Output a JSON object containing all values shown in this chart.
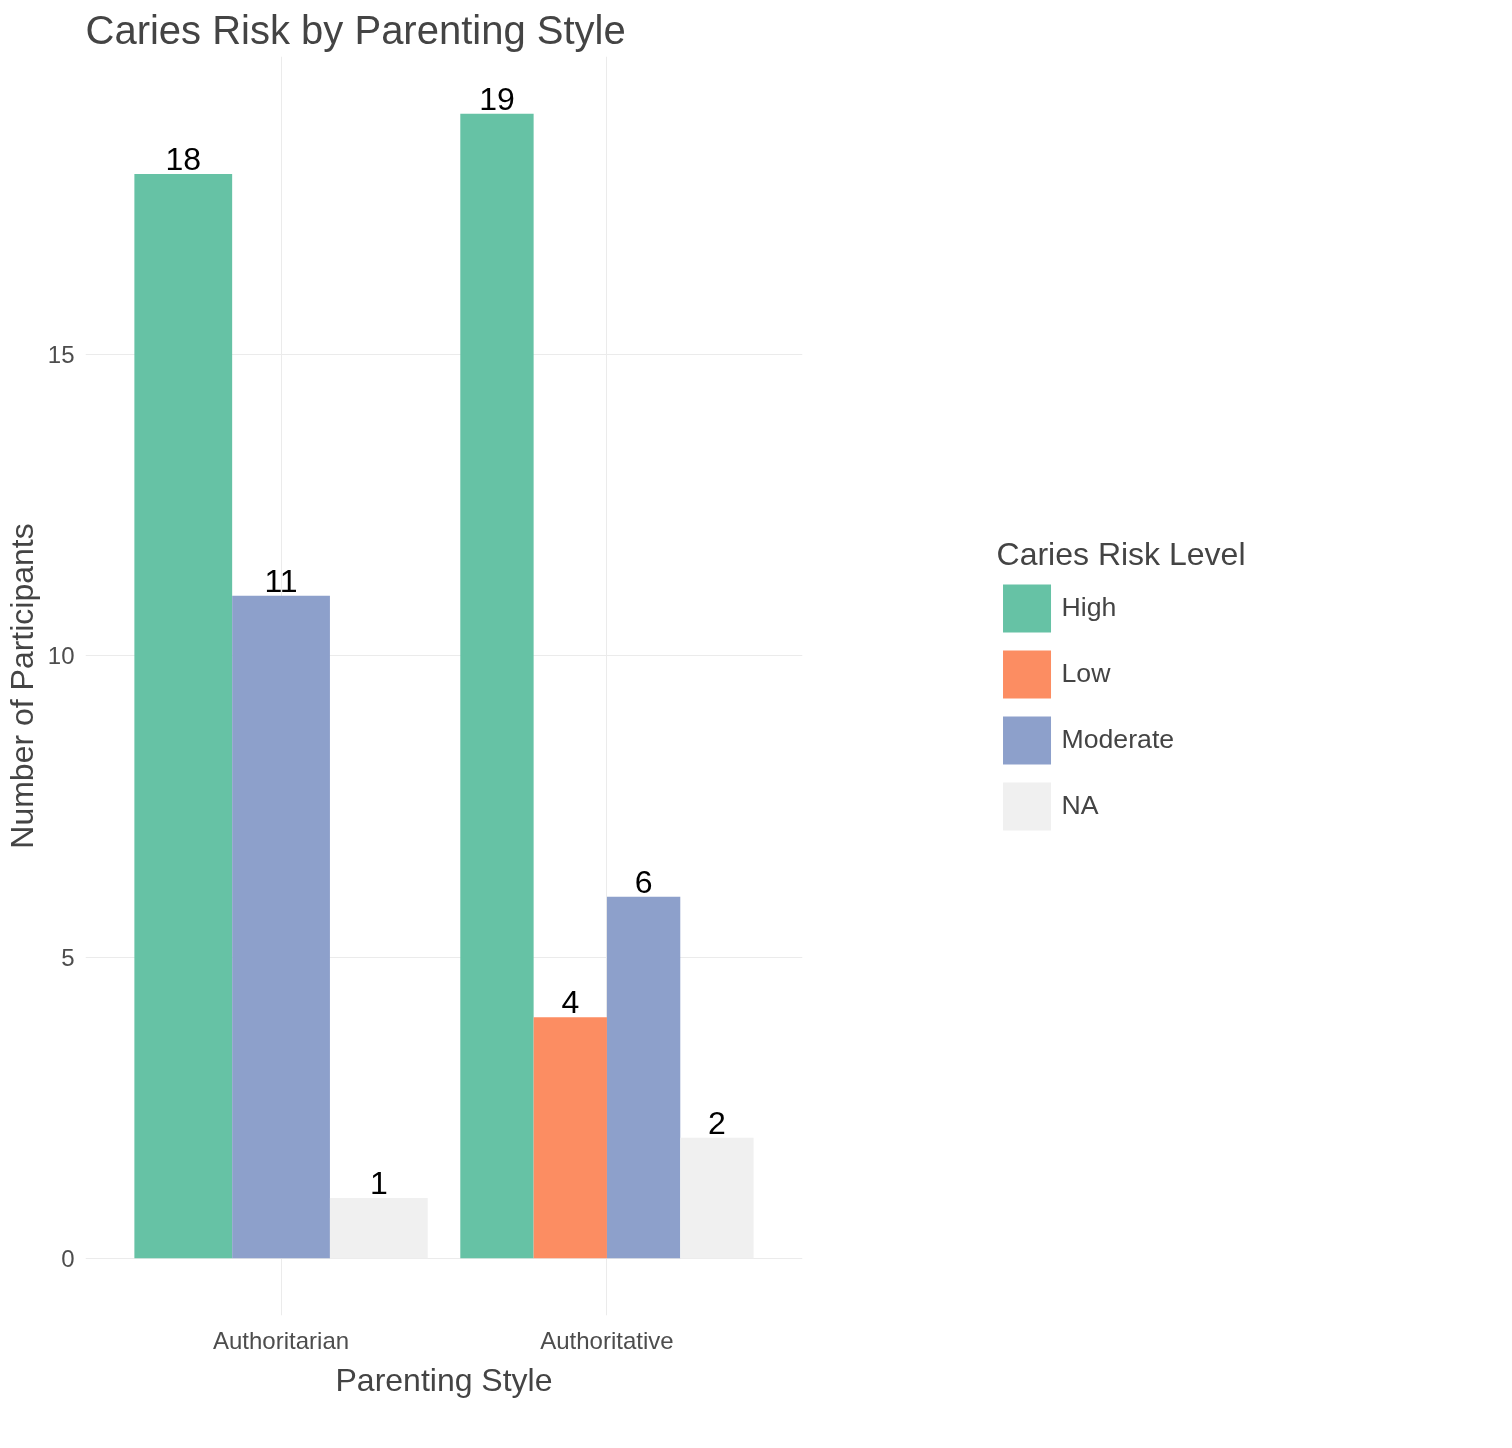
{
  "chart_data": {
    "type": "bar",
    "title": "Caries Risk by Parenting Style",
    "xlabel": "Parenting Style",
    "ylabel": "Number of Participants",
    "legend_title": "Caries Risk Level",
    "categories": [
      "Authoritarian",
      "Authoritative"
    ],
    "series": [
      {
        "name": "High",
        "color": "#66c2a5",
        "values": [
          18,
          19
        ]
      },
      {
        "name": "Low",
        "color": "#fc8d62",
        "values": [
          null,
          4
        ]
      },
      {
        "name": "Moderate",
        "color": "#8da0cb",
        "values": [
          11,
          6
        ]
      },
      {
        "name": "NA",
        "color": "#f0f0f0",
        "values": [
          1,
          2
        ]
      }
    ],
    "ylim": [
      -0.95,
      19.95
    ],
    "yticks": [
      0,
      5,
      10,
      15
    ],
    "grid": true,
    "legend": "right",
    "data_labels": true
  }
}
